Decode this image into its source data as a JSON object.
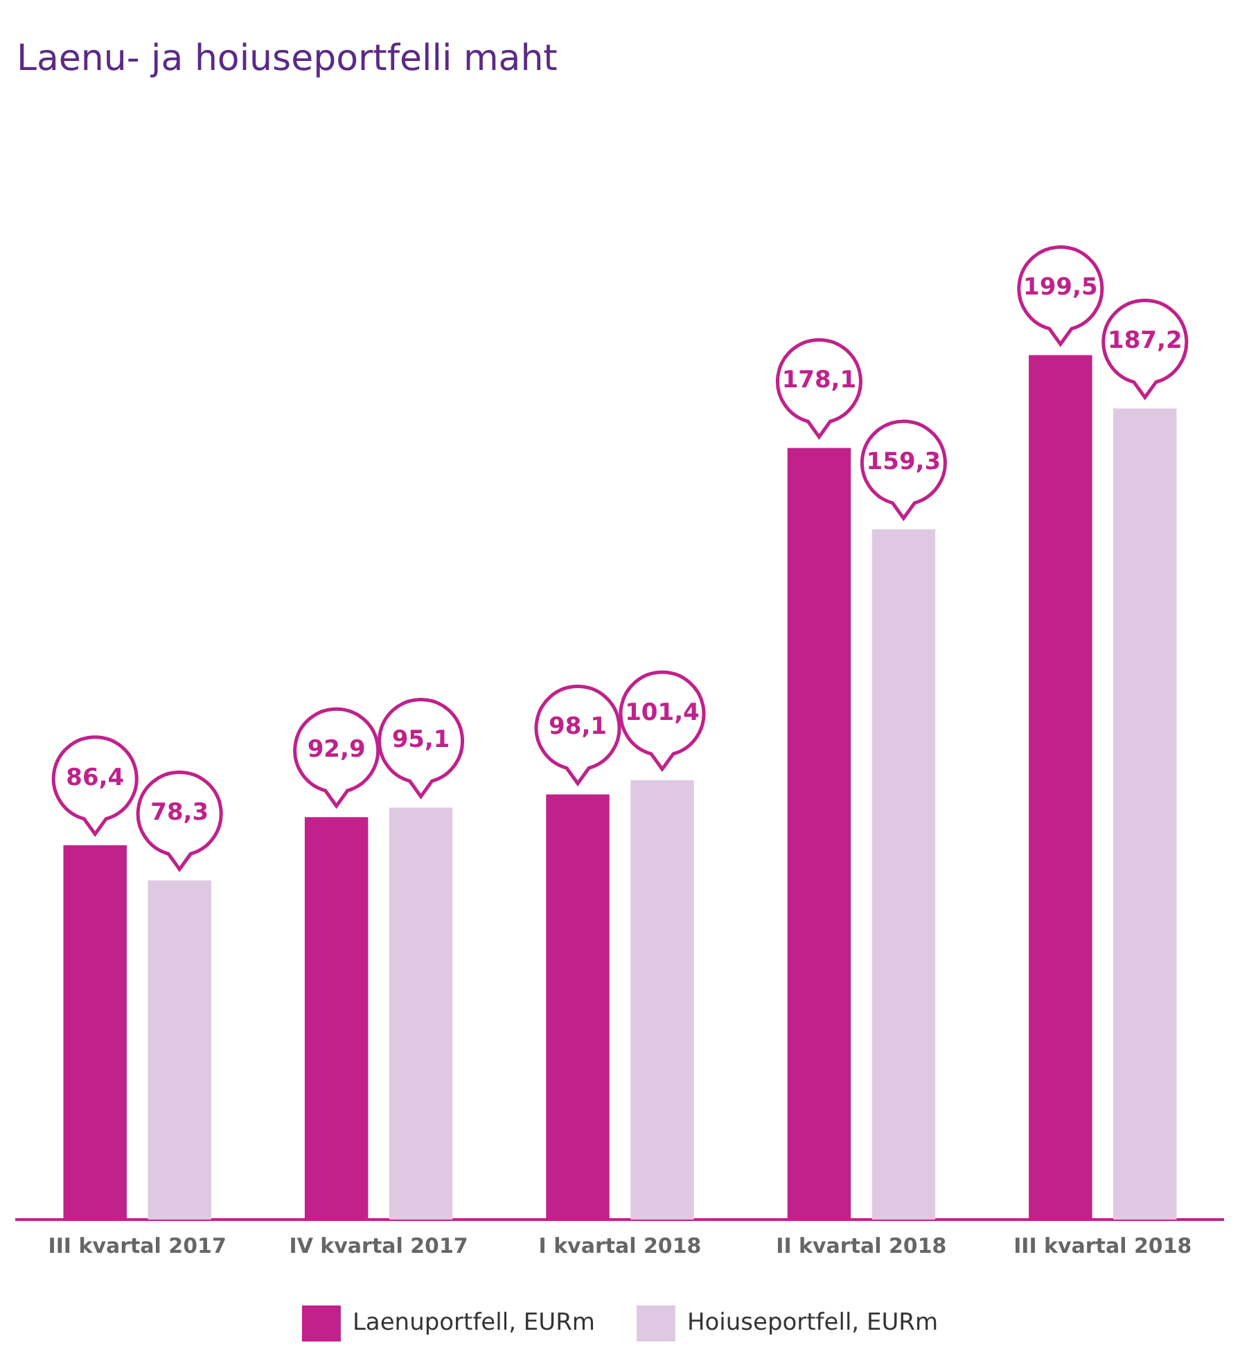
{
  "chart_data": {
    "type": "bar",
    "title": "Laenu- ja hoiuseportfelli maht",
    "categories": [
      "III kvartal 2017",
      "IV kvartal 2017",
      "I kvartal 2018",
      "II kvartal 2018",
      "III kvartal 2018"
    ],
    "series": [
      {
        "name": "Laenuportfell, EURm",
        "color": "#c0218a",
        "values": [
          86.4,
          92.9,
          98.1,
          178.1,
          199.5
        ],
        "value_labels": [
          "86,4",
          "92,9",
          "98,1",
          "178,1",
          "199,5"
        ]
      },
      {
        "name": "Hoiuseportfell, EURm",
        "color": "#dfc9e2",
        "values": [
          78.3,
          95.1,
          101.4,
          159.3,
          187.2
        ],
        "value_labels": [
          "78,3",
          "95,1",
          "101,4",
          "159,3",
          "187,2"
        ]
      }
    ],
    "legend": "bottom"
  }
}
